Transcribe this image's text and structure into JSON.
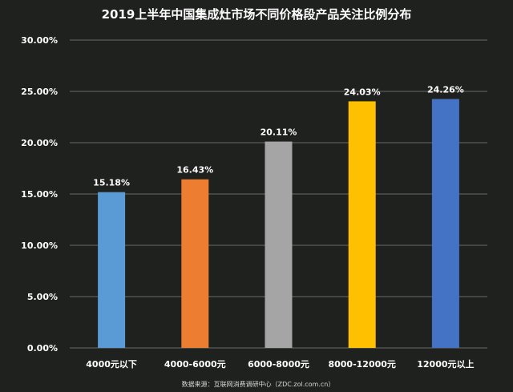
{
  "chart_data": {
    "type": "bar",
    "title": "2019上半年中国集成灶市场不同价格段产品关注比例分布",
    "categories": [
      "4000元以下",
      "4000-6000元",
      "6000-8000元",
      "8000-12000元",
      "12000元以上"
    ],
    "values": [
      15.18,
      16.43,
      20.11,
      24.03,
      24.26
    ],
    "data_labels": [
      "15.18%",
      "16.43%",
      "20.11%",
      "24.03%",
      "24.26%"
    ],
    "bar_colors": [
      "#5b9bd5",
      "#ed7d31",
      "#a5a5a5",
      "#ffc000",
      "#4472c4"
    ],
    "ylim": [
      0,
      30
    ],
    "yticks": [
      0,
      5,
      10,
      15,
      20,
      25,
      30
    ],
    "ytick_labels": [
      "0.00%",
      "5.00%",
      "10.00%",
      "15.00%",
      "20.00%",
      "25.00%",
      "30.00%"
    ],
    "xlabel": "",
    "ylabel": "",
    "grid": true,
    "legend": "none",
    "source": "数据来源：互联网消费调研中心（ZDC.zol.com.cn）"
  }
}
